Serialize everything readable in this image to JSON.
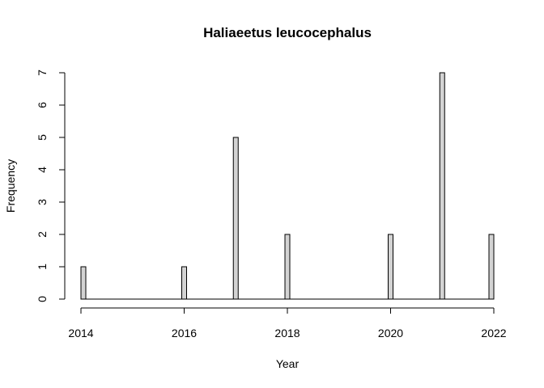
{
  "chart_data": {
    "type": "bar",
    "title": "Haliaeetus leucocephalus",
    "xlabel": "Year",
    "ylabel": "Frequency",
    "x": [
      2014,
      2016,
      2017,
      2018,
      2020,
      2021,
      2022
    ],
    "values": [
      1,
      1,
      5,
      2,
      2,
      7,
      2
    ],
    "xlim": [
      2014,
      2022
    ],
    "ylim": [
      0,
      7
    ],
    "xticks": [
      "2014",
      "2016",
      "2018",
      "2020",
      "2022"
    ],
    "yticks": [
      "0",
      "1",
      "2",
      "3",
      "4",
      "5",
      "6",
      "7"
    ],
    "grid": false,
    "legend": "none",
    "bar_fill": "#d3d3d3",
    "bar_stroke": "#000000"
  }
}
